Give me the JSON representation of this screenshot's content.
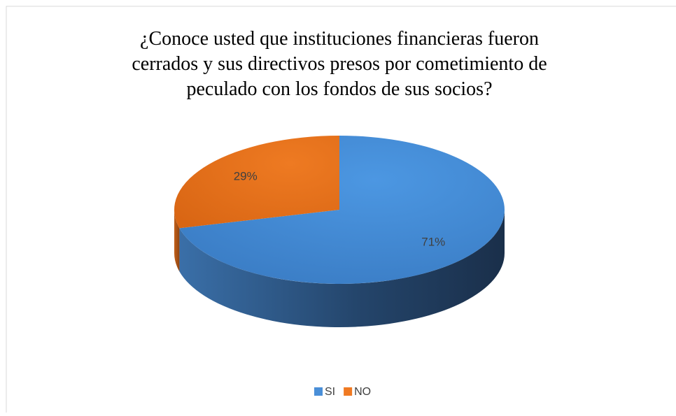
{
  "chart_data": {
    "type": "pie3d",
    "title": "¿Conoce usted que instituciones financieras fueron cerrados y sus directivos presos por cometimiento de peculado con los fondos de sus socios?",
    "categories": [
      "SI",
      "NO"
    ],
    "values": [
      71,
      29
    ],
    "value_labels": [
      "71%",
      "29%"
    ],
    "colors": [
      "#4a8fd8",
      "#f07a22"
    ],
    "legend": "bottom"
  }
}
